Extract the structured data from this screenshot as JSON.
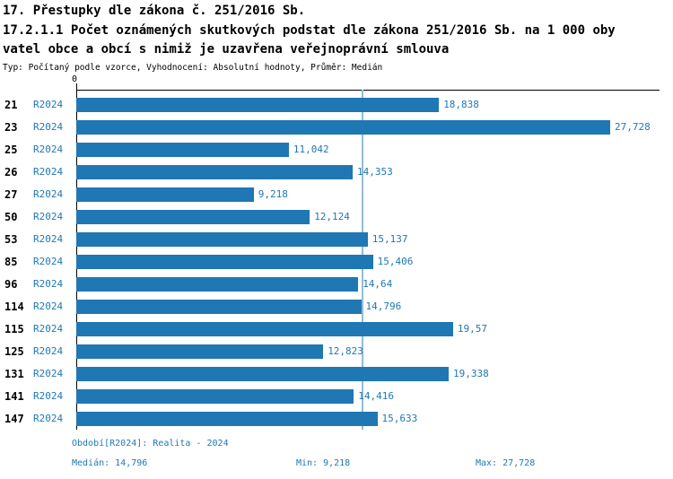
{
  "header": {
    "title_line1": "17. Přestupky dle zákona č. 251/2016 Sb.",
    "title_line2": "17.2.1.1 Počet oznámených skutkových podstat dle zákona 251/2016 Sb. na 1 000 oby",
    "title_line3": "vatel obce a obcí s nimiž je uzavřena veřejnoprávní smlouva",
    "subtitle": "Typ: Počítaný podle vzorce, Vyhodnocení: Absolutní hodnoty, Průměr: Medián"
  },
  "chart_data": {
    "type": "bar",
    "orientation": "horizontal",
    "series_label": "R2024",
    "categories": [
      "21",
      "23",
      "25",
      "26",
      "27",
      "50",
      "53",
      "85",
      "96",
      "114",
      "115",
      "125",
      "131",
      "141",
      "147"
    ],
    "values": [
      18.838,
      27.728,
      11.042,
      14.353,
      9.218,
      12.124,
      15.137,
      15.406,
      14.64,
      14.796,
      19.57,
      12.823,
      19.338,
      14.416,
      15.633
    ],
    "value_labels": [
      "18,838",
      "27,728",
      "11,042",
      "14,353",
      "9,218",
      "12,124",
      "15,137",
      "15,406",
      "14,64",
      "14,796",
      "19,57",
      "12,823",
      "19,338",
      "14,416",
      "15,633"
    ],
    "axis_origin_label": "0",
    "xlim": [
      0,
      27.728
    ],
    "median": 14.796,
    "grid": false,
    "legend_position": "none",
    "bar_color": "#1f77b4",
    "median_line_color": "#93bdd4"
  },
  "footer": {
    "period": "Období[R2024]: Realita - 2024",
    "median": "Medián: 14,796",
    "min": "Min: 9,218",
    "max": "Max: 27,728"
  }
}
